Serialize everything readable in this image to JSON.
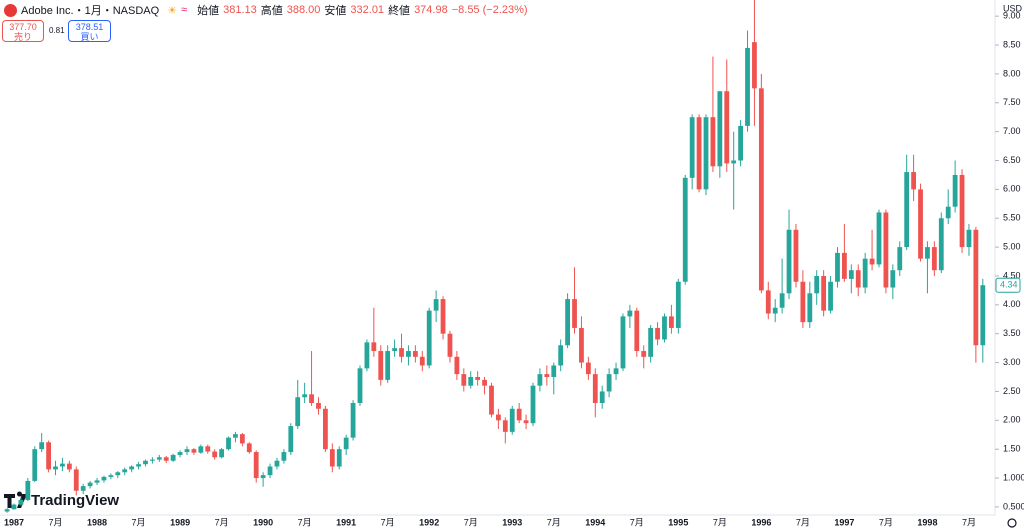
{
  "header": {
    "symbol": "Adobe Inc.・1月・NASDAQ",
    "open_label": "始値",
    "open": "381.13",
    "high_label": "高値",
    "high": "388.00",
    "low_label": "安値",
    "low": "332.01",
    "close_label": "終値",
    "close": "374.98",
    "change": "−8.55 (−2.23%)",
    "sell_price": "377.70",
    "sell_label": "売り",
    "spread": "0.81",
    "buy_price": "378.51",
    "buy_label": "買い",
    "currency": "USD",
    "brand": "TradingView"
  },
  "chart_data": {
    "type": "candlestick",
    "up_color": "#26a69a",
    "down_color": "#ef5350",
    "grid": false,
    "ylim": [
      0.36,
      9.28
    ],
    "yticks": [
      {
        "value": 0.5,
        "label": "0.5000"
      },
      {
        "value": 1,
        "label": "1.0000"
      },
      {
        "value": 1.5,
        "label": "1.50"
      },
      {
        "value": 2,
        "label": "2.00"
      },
      {
        "value": 2.5,
        "label": "2.50"
      },
      {
        "value": 3,
        "label": "3.00"
      },
      {
        "value": 3.5,
        "label": "3.50"
      },
      {
        "value": 4,
        "label": "4.00"
      },
      {
        "value": 4.5,
        "label": "4.50"
      },
      {
        "value": 5,
        "label": "5.00"
      },
      {
        "value": 5.5,
        "label": "5.50"
      },
      {
        "value": 6,
        "label": "6.00"
      },
      {
        "value": 6.5,
        "label": "6.50"
      },
      {
        "value": 7,
        "label": "7.00"
      },
      {
        "value": 7.5,
        "label": "7.50"
      },
      {
        "value": 8,
        "label": "8.00"
      },
      {
        "value": 8.5,
        "label": "8.50"
      },
      {
        "value": 9,
        "label": "9.00"
      }
    ],
    "categories": [
      null,
      "1987",
      null,
      null,
      null,
      null,
      null,
      "7月",
      null,
      null,
      null,
      null,
      null,
      "1988",
      null,
      null,
      null,
      null,
      null,
      "7月",
      null,
      null,
      null,
      null,
      null,
      "1989",
      null,
      null,
      null,
      null,
      null,
      "7月",
      null,
      null,
      null,
      null,
      null,
      "1990",
      null,
      null,
      null,
      null,
      null,
      "7月",
      null,
      null,
      null,
      null,
      null,
      "1991",
      null,
      null,
      null,
      null,
      null,
      "7月",
      null,
      null,
      null,
      null,
      null,
      "1992",
      null,
      null,
      null,
      null,
      null,
      "7月",
      null,
      null,
      null,
      null,
      null,
      "1993",
      null,
      null,
      null,
      null,
      null,
      "7月",
      null,
      null,
      null,
      null,
      null,
      "1994",
      null,
      null,
      null,
      null,
      null,
      "7月",
      null,
      null,
      null,
      null,
      null,
      "1995",
      null,
      null,
      null,
      null,
      null,
      "7月",
      null,
      null,
      null,
      null,
      null,
      "1996",
      null,
      null,
      null,
      null,
      null,
      "7月",
      null,
      null,
      null,
      null,
      null,
      "1997",
      null,
      null,
      null,
      null,
      null,
      "7月",
      null,
      null,
      null,
      null,
      null,
      "1998",
      null,
      null,
      null,
      null,
      null,
      "7月",
      null,
      null
    ],
    "candles": [
      [
        0.42,
        0.48,
        0.4,
        0.46
      ],
      [
        0.46,
        0.56,
        0.45,
        0.54
      ],
      [
        0.54,
        0.66,
        0.52,
        0.62
      ],
      [
        0.62,
        1.0,
        0.6,
        0.95
      ],
      [
        0.95,
        1.55,
        0.93,
        1.5
      ],
      [
        1.5,
        1.78,
        1.45,
        1.62
      ],
      [
        1.62,
        1.65,
        1.1,
        1.15
      ],
      [
        1.15,
        1.3,
        1.05,
        1.2
      ],
      [
        1.2,
        1.35,
        1.12,
        1.25
      ],
      [
        1.25,
        1.3,
        1.1,
        1.15
      ],
      [
        1.15,
        1.2,
        0.7,
        0.78
      ],
      [
        0.78,
        0.9,
        0.72,
        0.86
      ],
      [
        0.86,
        0.95,
        0.82,
        0.92
      ],
      [
        0.92,
        1.0,
        0.88,
        0.96
      ],
      [
        0.96,
        1.04,
        0.92,
        1.02
      ],
      [
        1.02,
        1.08,
        0.98,
        1.05
      ],
      [
        1.05,
        1.12,
        1.0,
        1.1
      ],
      [
        1.1,
        1.18,
        1.05,
        1.15
      ],
      [
        1.15,
        1.22,
        1.1,
        1.2
      ],
      [
        1.2,
        1.28,
        1.15,
        1.24
      ],
      [
        1.24,
        1.32,
        1.2,
        1.3
      ],
      [
        1.3,
        1.36,
        1.25,
        1.32
      ],
      [
        1.32,
        1.4,
        1.28,
        1.36
      ],
      [
        1.36,
        1.38,
        1.26,
        1.3
      ],
      [
        1.3,
        1.42,
        1.28,
        1.4
      ],
      [
        1.4,
        1.48,
        1.36,
        1.45
      ],
      [
        1.45,
        1.55,
        1.4,
        1.5
      ],
      [
        1.5,
        1.52,
        1.4,
        1.44
      ],
      [
        1.44,
        1.58,
        1.42,
        1.55
      ],
      [
        1.55,
        1.58,
        1.42,
        1.46
      ],
      [
        1.46,
        1.5,
        1.32,
        1.36
      ],
      [
        1.36,
        1.52,
        1.34,
        1.5
      ],
      [
        1.5,
        1.72,
        1.48,
        1.7
      ],
      [
        1.7,
        1.8,
        1.62,
        1.76
      ],
      [
        1.76,
        1.78,
        1.55,
        1.6
      ],
      [
        1.6,
        1.62,
        1.42,
        1.45
      ],
      [
        1.45,
        1.48,
        0.92,
        1.0
      ],
      [
        1.0,
        1.1,
        0.85,
        1.05
      ],
      [
        1.05,
        1.25,
        1.0,
        1.2
      ],
      [
        1.2,
        1.35,
        1.15,
        1.3
      ],
      [
        1.3,
        1.5,
        1.25,
        1.45
      ],
      [
        1.45,
        1.95,
        1.4,
        1.9
      ],
      [
        1.9,
        2.7,
        1.85,
        2.4
      ],
      [
        2.4,
        2.65,
        2.3,
        2.45
      ],
      [
        2.45,
        3.2,
        2.25,
        2.3
      ],
      [
        2.3,
        2.4,
        2.1,
        2.2
      ],
      [
        2.2,
        2.25,
        1.45,
        1.5
      ],
      [
        1.5,
        1.6,
        1.1,
        1.2
      ],
      [
        1.2,
        1.55,
        1.15,
        1.5
      ],
      [
        1.5,
        1.75,
        1.4,
        1.7
      ],
      [
        1.7,
        2.35,
        1.65,
        2.3
      ],
      [
        2.3,
        2.95,
        2.25,
        2.9
      ],
      [
        2.9,
        3.4,
        2.85,
        3.35
      ],
      [
        3.35,
        3.95,
        3.1,
        3.2
      ],
      [
        3.2,
        3.3,
        2.6,
        2.7
      ],
      [
        2.7,
        3.3,
        2.65,
        3.2
      ],
      [
        3.2,
        3.4,
        3.1,
        3.25
      ],
      [
        3.25,
        3.5,
        3.0,
        3.1
      ],
      [
        3.1,
        3.3,
        2.95,
        3.2
      ],
      [
        3.2,
        3.3,
        3.0,
        3.1
      ],
      [
        3.1,
        3.2,
        2.85,
        2.95
      ],
      [
        2.95,
        3.95,
        2.9,
        3.9
      ],
      [
        3.9,
        4.25,
        3.7,
        4.1
      ],
      [
        4.1,
        4.15,
        3.4,
        3.5
      ],
      [
        3.5,
        3.55,
        3.0,
        3.1
      ],
      [
        3.1,
        3.2,
        2.7,
        2.8
      ],
      [
        2.8,
        2.9,
        2.5,
        2.6
      ],
      [
        2.6,
        2.85,
        2.55,
        2.75
      ],
      [
        2.75,
        2.85,
        2.6,
        2.7
      ],
      [
        2.7,
        2.75,
        2.45,
        2.6
      ],
      [
        2.6,
        2.65,
        2.05,
        2.1
      ],
      [
        2.1,
        2.2,
        1.85,
        2.0
      ],
      [
        2.0,
        2.05,
        1.6,
        1.8
      ],
      [
        1.8,
        2.25,
        1.75,
        2.2
      ],
      [
        2.2,
        2.3,
        1.95,
        2.0
      ],
      [
        2.0,
        2.1,
        1.85,
        1.95
      ],
      [
        1.95,
        2.65,
        1.9,
        2.6
      ],
      [
        2.6,
        2.9,
        2.5,
        2.8
      ],
      [
        2.8,
        2.95,
        2.6,
        2.75
      ],
      [
        2.75,
        3.0,
        2.45,
        2.95
      ],
      [
        2.95,
        3.4,
        2.85,
        3.3
      ],
      [
        3.3,
        4.2,
        3.25,
        4.1
      ],
      [
        4.1,
        4.65,
        3.5,
        3.6
      ],
      [
        3.6,
        3.8,
        2.9,
        3.0
      ],
      [
        3.0,
        3.1,
        2.7,
        2.8
      ],
      [
        2.8,
        2.9,
        2.05,
        2.3
      ],
      [
        2.3,
        2.6,
        2.2,
        2.5
      ],
      [
        2.5,
        2.9,
        2.4,
        2.8
      ],
      [
        2.8,
        3.0,
        2.7,
        2.9
      ],
      [
        2.9,
        3.85,
        2.85,
        3.8
      ],
      [
        3.8,
        4.0,
        3.6,
        3.9
      ],
      [
        3.9,
        3.95,
        3.1,
        3.2
      ],
      [
        3.2,
        3.3,
        2.9,
        3.1
      ],
      [
        3.1,
        3.65,
        3.0,
        3.6
      ],
      [
        3.6,
        3.7,
        3.3,
        3.4
      ],
      [
        3.4,
        3.85,
        3.35,
        3.8
      ],
      [
        3.8,
        4.0,
        3.5,
        3.6
      ],
      [
        3.6,
        4.45,
        3.5,
        4.4
      ],
      [
        4.4,
        6.25,
        4.35,
        6.2
      ],
      [
        6.2,
        7.3,
        6.0,
        7.25
      ],
      [
        7.25,
        7.3,
        5.95,
        6.0
      ],
      [
        6.0,
        7.3,
        5.9,
        7.25
      ],
      [
        7.25,
        8.3,
        6.3,
        6.4
      ],
      [
        6.4,
        7.7,
        6.2,
        7.7
      ],
      [
        7.7,
        8.25,
        6.3,
        6.45
      ],
      [
        6.45,
        7.0,
        5.65,
        6.5
      ],
      [
        6.5,
        7.2,
        6.4,
        7.1
      ],
      [
        7.1,
        8.75,
        7.0,
        8.45
      ],
      [
        8.55,
        9.3,
        7.1,
        7.75
      ],
      [
        7.75,
        8.0,
        4.2,
        4.25
      ],
      [
        4.25,
        4.4,
        3.75,
        3.85
      ],
      [
        3.85,
        4.1,
        3.7,
        3.95
      ],
      [
        3.95,
        4.8,
        3.85,
        4.2
      ],
      [
        4.2,
        5.65,
        4.1,
        5.3
      ],
      [
        5.3,
        5.4,
        4.3,
        4.4
      ],
      [
        4.4,
        4.6,
        3.6,
        3.7
      ],
      [
        3.7,
        4.4,
        3.6,
        4.2
      ],
      [
        4.2,
        4.6,
        4.0,
        4.5
      ],
      [
        4.5,
        4.6,
        3.8,
        3.9
      ],
      [
        3.9,
        4.5,
        3.85,
        4.4
      ],
      [
        4.4,
        5.0,
        4.3,
        4.9
      ],
      [
        4.9,
        5.4,
        4.4,
        4.45
      ],
      [
        4.45,
        4.7,
        4.2,
        4.6
      ],
      [
        4.6,
        4.7,
        4.15,
        4.3
      ],
      [
        4.3,
        4.9,
        4.2,
        4.8
      ],
      [
        4.8,
        5.3,
        4.6,
        4.7
      ],
      [
        4.7,
        5.65,
        4.65,
        5.6
      ],
      [
        5.6,
        5.65,
        4.2,
        4.3
      ],
      [
        4.3,
        4.7,
        4.1,
        4.6
      ],
      [
        4.6,
        5.1,
        4.5,
        5.0
      ],
      [
        5.0,
        6.6,
        4.95,
        6.3
      ],
      [
        6.3,
        6.6,
        5.8,
        6.0
      ],
      [
        6.0,
        6.1,
        4.75,
        4.8
      ],
      [
        4.8,
        5.1,
        4.2,
        5.0
      ],
      [
        5.0,
        5.1,
        4.5,
        4.6
      ],
      [
        4.6,
        5.6,
        4.55,
        5.5
      ],
      [
        5.5,
        6.0,
        5.4,
        5.7
      ],
      [
        5.7,
        6.5,
        5.6,
        6.25
      ],
      [
        6.25,
        6.35,
        4.9,
        5.0
      ],
      [
        5.0,
        5.4,
        4.85,
        5.3
      ],
      [
        5.3,
        5.35,
        3.0,
        3.3
      ],
      [
        3.3,
        4.45,
        3.0,
        4.34
      ]
    ]
  }
}
